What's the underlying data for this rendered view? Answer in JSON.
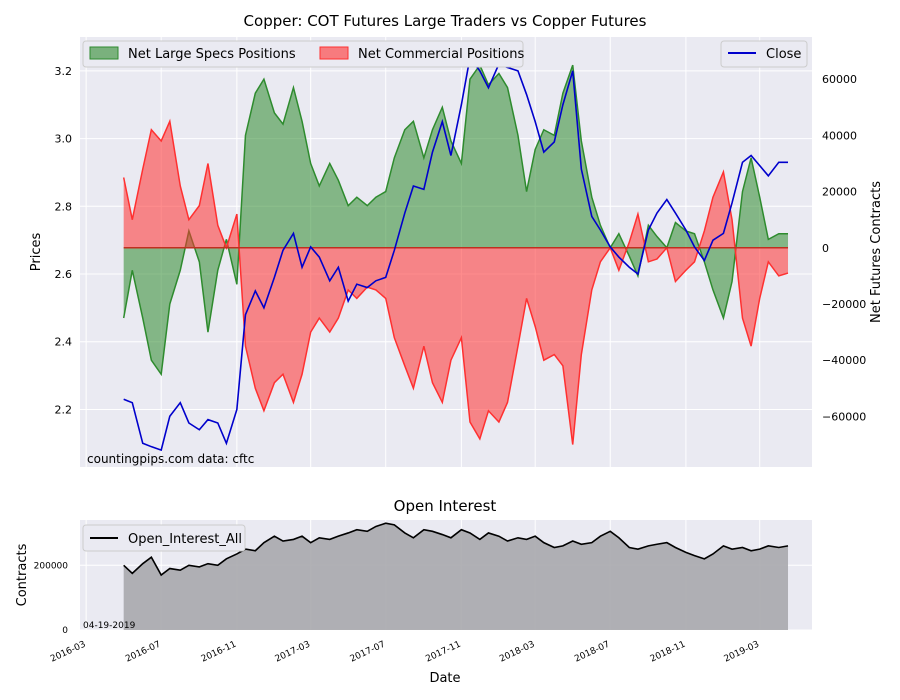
{
  "chart_data": [
    {
      "type": "area",
      "title": "Copper: COT Futures Large Traders vs Copper Futures",
      "ylabel_left": "Prices",
      "ylabel_right": "Net Futures Contracts",
      "ylim_left": [
        2.03,
        3.3
      ],
      "ylim_right": [
        -78000,
        75000
      ],
      "yticks_left": [
        "2.2",
        "2.4",
        "2.6",
        "2.8",
        "3.0",
        "3.2"
      ],
      "yticks_right": [
        "−60000",
        "−40000",
        "−20000",
        "0",
        "20000",
        "40000",
        "60000"
      ],
      "grid": true,
      "legend_left_placement": "top-left",
      "legend_right_placement": "top-right",
      "credit": "countingpips.com    data: cftc",
      "series": [
        {
          "name": "Net Large Specs Positions",
          "color": "#2e8b2e",
          "axis": "right",
          "kind": "area",
          "x": [
            "2016-05-01",
            "2016-05-15",
            "2016-06-01",
            "2016-06-15",
            "2016-07-01",
            "2016-07-15",
            "2016-08-01",
            "2016-08-15",
            "2016-09-01",
            "2016-09-15",
            "2016-10-01",
            "2016-10-15",
            "2016-11-01",
            "2016-11-15",
            "2016-12-01",
            "2016-12-15",
            "2017-01-01",
            "2017-01-15",
            "2017-02-01",
            "2017-02-15",
            "2017-03-01",
            "2017-03-15",
            "2017-04-01",
            "2017-04-15",
            "2017-05-01",
            "2017-05-15",
            "2017-06-01",
            "2017-06-15",
            "2017-07-01",
            "2017-07-15",
            "2017-08-01",
            "2017-08-15",
            "2017-09-01",
            "2017-09-15",
            "2017-10-01",
            "2017-10-15",
            "2017-11-01",
            "2017-11-15",
            "2017-12-01",
            "2017-12-15",
            "2018-01-01",
            "2018-01-15",
            "2018-02-01",
            "2018-02-15",
            "2018-03-01",
            "2018-03-15",
            "2018-04-01",
            "2018-04-15",
            "2018-05-01",
            "2018-05-15",
            "2018-06-01",
            "2018-06-15",
            "2018-07-01",
            "2018-07-15",
            "2018-08-01",
            "2018-08-15",
            "2018-09-01",
            "2018-09-15",
            "2018-10-01",
            "2018-10-15",
            "2018-11-01",
            "2018-11-15",
            "2018-12-01",
            "2018-12-15",
            "2019-01-01",
            "2019-01-15",
            "2019-02-01",
            "2019-02-15",
            "2019-03-01",
            "2019-03-15",
            "2019-04-01",
            "2019-04-16"
          ],
          "values": [
            -25000,
            -8000,
            -25000,
            -40000,
            -45000,
            -20000,
            -8000,
            6000,
            -5000,
            -30000,
            -8000,
            3000,
            -13000,
            40000,
            55000,
            60000,
            48000,
            44000,
            57000,
            45000,
            30000,
            22000,
            30000,
            24000,
            15000,
            18000,
            15000,
            18000,
            20000,
            32000,
            42000,
            45000,
            32000,
            42000,
            50000,
            38000,
            30000,
            60000,
            65000,
            58000,
            62000,
            57000,
            40000,
            20000,
            35000,
            42000,
            40000,
            55000,
            65000,
            38000,
            18000,
            8000,
            0,
            5000,
            -3000,
            -10000,
            8000,
            4000,
            0,
            9000,
            6000,
            5000,
            -5000,
            -15000,
            -25000,
            -12000,
            20000,
            32000,
            18000,
            3000,
            5000,
            5000
          ]
        },
        {
          "name": "Net Commercial Positions",
          "color": "#ff3030",
          "axis": "right",
          "kind": "area",
          "x": [
            "2016-05-01",
            "2016-05-15",
            "2016-06-01",
            "2016-06-15",
            "2016-07-01",
            "2016-07-15",
            "2016-08-01",
            "2016-08-15",
            "2016-09-01",
            "2016-09-15",
            "2016-10-01",
            "2016-10-15",
            "2016-11-01",
            "2016-11-15",
            "2016-12-01",
            "2016-12-15",
            "2017-01-01",
            "2017-01-15",
            "2017-02-01",
            "2017-02-15",
            "2017-03-01",
            "2017-03-15",
            "2017-04-01",
            "2017-04-15",
            "2017-05-01",
            "2017-05-15",
            "2017-06-01",
            "2017-06-15",
            "2017-07-01",
            "2017-07-15",
            "2017-08-01",
            "2017-08-15",
            "2017-09-01",
            "2017-09-15",
            "2017-10-01",
            "2017-10-15",
            "2017-11-01",
            "2017-11-15",
            "2017-12-01",
            "2017-12-15",
            "2018-01-01",
            "2018-01-15",
            "2018-02-01",
            "2018-02-15",
            "2018-03-01",
            "2018-03-15",
            "2018-04-01",
            "2018-04-15",
            "2018-05-01",
            "2018-05-15",
            "2018-06-01",
            "2018-06-15",
            "2018-07-01",
            "2018-07-15",
            "2018-08-01",
            "2018-08-15",
            "2018-09-01",
            "2018-09-15",
            "2018-10-01",
            "2018-10-15",
            "2018-11-01",
            "2018-11-15",
            "2018-12-01",
            "2018-12-15",
            "2019-01-01",
            "2019-01-15",
            "2019-02-01",
            "2019-02-15",
            "2019-03-01",
            "2019-03-15",
            "2019-04-01",
            "2019-04-16"
          ],
          "values": [
            25000,
            10000,
            28000,
            42000,
            38000,
            45000,
            22000,
            10000,
            15000,
            30000,
            8000,
            0,
            12000,
            -35000,
            -50000,
            -58000,
            -48000,
            -45000,
            -55000,
            -45000,
            -30000,
            -25000,
            -30000,
            -25000,
            -15000,
            -18000,
            -14000,
            -15000,
            -18000,
            -32000,
            -42000,
            -50000,
            -35000,
            -48000,
            -55000,
            -40000,
            -32000,
            -62000,
            -68000,
            -58000,
            -62000,
            -55000,
            -35000,
            -18000,
            -28000,
            -40000,
            -38000,
            -42000,
            -70000,
            -38000,
            -15000,
            -5000,
            0,
            -8000,
            2000,
            12000,
            -5000,
            -4000,
            0,
            -12000,
            -8000,
            -5000,
            6000,
            18000,
            27000,
            10000,
            -25000,
            -35000,
            -18000,
            -5000,
            -10000,
            -9000
          ]
        },
        {
          "name": "Close",
          "color": "#0000cc",
          "axis": "left",
          "kind": "line",
          "x": [
            "2016-05-01",
            "2016-05-15",
            "2016-06-01",
            "2016-06-15",
            "2016-07-01",
            "2016-07-15",
            "2016-08-01",
            "2016-08-15",
            "2016-09-01",
            "2016-09-15",
            "2016-10-01",
            "2016-10-15",
            "2016-11-01",
            "2016-11-15",
            "2016-12-01",
            "2016-12-15",
            "2017-01-01",
            "2017-01-15",
            "2017-02-01",
            "2017-02-15",
            "2017-03-01",
            "2017-03-15",
            "2017-04-01",
            "2017-04-15",
            "2017-05-01",
            "2017-05-15",
            "2017-06-01",
            "2017-06-15",
            "2017-07-01",
            "2017-07-15",
            "2017-08-01",
            "2017-08-15",
            "2017-09-01",
            "2017-09-15",
            "2017-10-01",
            "2017-10-15",
            "2017-11-01",
            "2017-11-15",
            "2017-12-01",
            "2017-12-15",
            "2018-01-01",
            "2018-01-15",
            "2018-02-01",
            "2018-02-15",
            "2018-03-01",
            "2018-03-15",
            "2018-04-01",
            "2018-04-15",
            "2018-05-01",
            "2018-05-15",
            "2018-06-01",
            "2018-06-15",
            "2018-07-01",
            "2018-07-15",
            "2018-08-01",
            "2018-08-15",
            "2018-09-01",
            "2018-09-15",
            "2018-10-01",
            "2018-10-15",
            "2018-11-01",
            "2018-11-15",
            "2018-12-01",
            "2018-12-15",
            "2019-01-01",
            "2019-01-15",
            "2019-02-01",
            "2019-02-15",
            "2019-03-01",
            "2019-03-15",
            "2019-04-01",
            "2019-04-16"
          ],
          "values": [
            2.23,
            2.22,
            2.1,
            2.09,
            2.08,
            2.18,
            2.22,
            2.16,
            2.14,
            2.17,
            2.16,
            2.1,
            2.2,
            2.48,
            2.55,
            2.5,
            2.59,
            2.67,
            2.72,
            2.62,
            2.68,
            2.65,
            2.58,
            2.62,
            2.52,
            2.57,
            2.56,
            2.58,
            2.59,
            2.67,
            2.78,
            2.86,
            2.85,
            2.96,
            3.05,
            2.95,
            3.1,
            3.24,
            3.2,
            3.15,
            3.22,
            3.21,
            3.2,
            3.13,
            3.05,
            2.96,
            2.99,
            3.1,
            3.2,
            2.91,
            2.77,
            2.73,
            2.68,
            2.65,
            2.62,
            2.6,
            2.73,
            2.78,
            2.82,
            2.78,
            2.73,
            2.68,
            2.64,
            2.7,
            2.72,
            2.81,
            2.93,
            2.95,
            2.92,
            2.89,
            2.93,
            2.93
          ]
        }
      ]
    },
    {
      "type": "area",
      "title": "Open Interest",
      "xlabel": "Date",
      "ylabel": "Contracts",
      "ylim": [
        0,
        340000
      ],
      "yticks": [
        "0",
        "200000"
      ],
      "xticks": [
        "2016-03",
        "2016-07",
        "2016-11",
        "2017-03",
        "2017-07",
        "2017-11",
        "2018-03",
        "2018-07",
        "2018-11",
        "2019-03"
      ],
      "grid": true,
      "legend_placement": "top-left",
      "annotation": "04-19-2019",
      "series": [
        {
          "name": "Open_Interest_All",
          "color": "#000000",
          "fill": "#a9a9ad",
          "x": [
            "2016-05-01",
            "2016-05-15",
            "2016-06-01",
            "2016-06-15",
            "2016-07-01",
            "2016-07-15",
            "2016-08-01",
            "2016-08-15",
            "2016-09-01",
            "2016-09-15",
            "2016-10-01",
            "2016-10-15",
            "2016-11-01",
            "2016-11-15",
            "2016-12-01",
            "2016-12-15",
            "2017-01-01",
            "2017-01-15",
            "2017-02-01",
            "2017-02-15",
            "2017-03-01",
            "2017-03-15",
            "2017-04-01",
            "2017-04-15",
            "2017-05-01",
            "2017-05-15",
            "2017-06-01",
            "2017-06-15",
            "2017-07-01",
            "2017-07-15",
            "2017-08-01",
            "2017-08-15",
            "2017-09-01",
            "2017-09-15",
            "2017-10-01",
            "2017-10-15",
            "2017-11-01",
            "2017-11-15",
            "2017-12-01",
            "2017-12-15",
            "2018-01-01",
            "2018-01-15",
            "2018-02-01",
            "2018-02-15",
            "2018-03-01",
            "2018-03-15",
            "2018-04-01",
            "2018-04-15",
            "2018-05-01",
            "2018-05-15",
            "2018-06-01",
            "2018-06-15",
            "2018-07-01",
            "2018-07-15",
            "2018-08-01",
            "2018-08-15",
            "2018-09-01",
            "2018-09-15",
            "2018-10-01",
            "2018-10-15",
            "2018-11-01",
            "2018-11-15",
            "2018-12-01",
            "2018-12-15",
            "2019-01-01",
            "2019-01-15",
            "2019-02-01",
            "2019-02-15",
            "2019-03-01",
            "2019-03-15",
            "2019-04-01",
            "2019-04-16"
          ],
          "values": [
            200000,
            175000,
            205000,
            225000,
            170000,
            190000,
            185000,
            200000,
            195000,
            205000,
            200000,
            220000,
            235000,
            250000,
            245000,
            270000,
            290000,
            275000,
            280000,
            290000,
            270000,
            285000,
            280000,
            290000,
            300000,
            310000,
            305000,
            320000,
            330000,
            325000,
            300000,
            285000,
            310000,
            305000,
            295000,
            285000,
            310000,
            300000,
            280000,
            300000,
            290000,
            275000,
            285000,
            280000,
            290000,
            270000,
            255000,
            260000,
            275000,
            265000,
            270000,
            290000,
            305000,
            285000,
            255000,
            250000,
            260000,
            265000,
            270000,
            255000,
            240000,
            230000,
            220000,
            235000,
            260000,
            250000,
            255000,
            245000,
            250000,
            260000,
            255000,
            260000
          ]
        }
      ]
    }
  ]
}
